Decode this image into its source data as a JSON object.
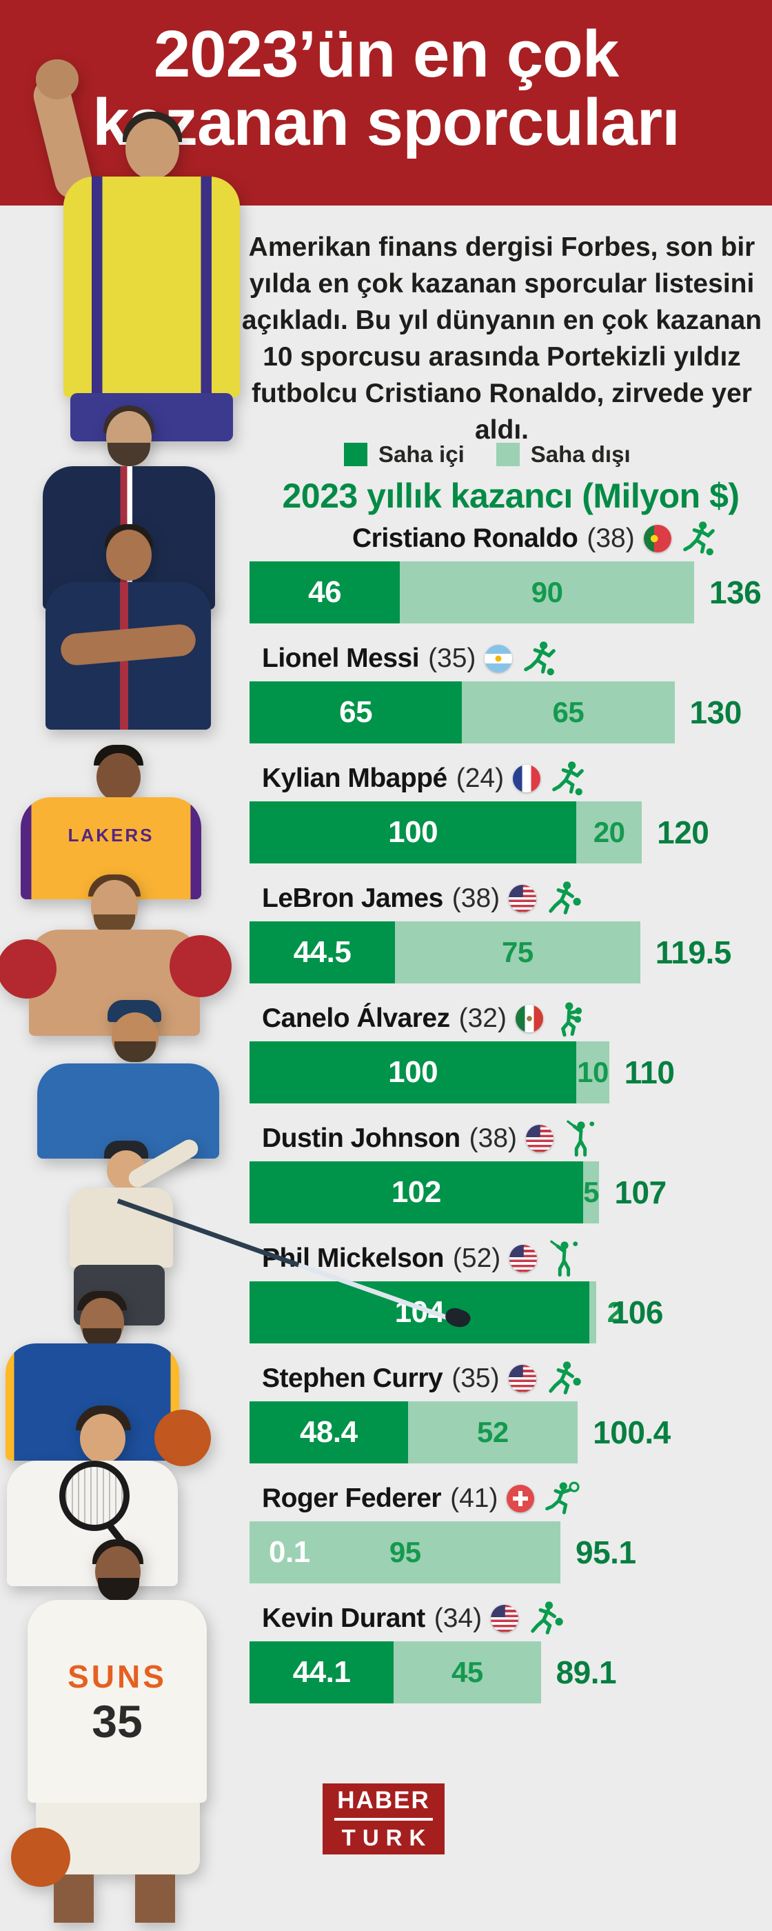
{
  "colors": {
    "header_red": "#a82023",
    "logo_red": "#a61f1f",
    "background": "#ececec",
    "on_field_green": "#00934a",
    "off_field_green": "#9cd1b3",
    "chart_title_green": "#038b46",
    "total_value_green": "#077f41",
    "off_value_green": "#14994e"
  },
  "header": {
    "title_line1": "2023’ün en çok",
    "title_line2": "kazanan sporcuları"
  },
  "intro": {
    "text": "Amerikan finans dergisi Forbes, son bir yılda en çok kazanan sporcular listesini açıkladı. Bu yıl dünyanın en çok kazanan 10 sporcusu arasında Portekizli yıldız futbolcu Cristiano Ronaldo, zirvede yer aldı."
  },
  "legend": {
    "on_label": "Saha içi",
    "off_label": "Saha dışı"
  },
  "chart_data": {
    "type": "bar",
    "orientation": "horizontal-stacked",
    "title": "2023 yıllık kazancı (Milyon $)",
    "unit": "Milyon $",
    "series_names": [
      "Saha içi",
      "Saha dışı"
    ],
    "max_total": 136,
    "athletes": [
      {
        "name": "Cristiano Ronaldo",
        "age": "(38)",
        "country": "portugal",
        "sport": "football",
        "on_field": 46,
        "off_field": 90,
        "total": 136,
        "on_label": "46",
        "off_label": "90",
        "total_label": "136"
      },
      {
        "name": "Lionel Messi",
        "age": "(35)",
        "country": "argentina",
        "sport": "football",
        "on_field": 65,
        "off_field": 65,
        "total": 130,
        "on_label": "65",
        "off_label": "65",
        "total_label": "130"
      },
      {
        "name": "Kylian Mbappé",
        "age": "(24)",
        "country": "france",
        "sport": "football",
        "on_field": 100,
        "off_field": 20,
        "total": 120,
        "on_label": "100",
        "off_label": "20",
        "total_label": "120"
      },
      {
        "name": "LeBron James",
        "age": "(38)",
        "country": "usa",
        "sport": "basketball",
        "on_field": 44.5,
        "off_field": 75,
        "total": 119.5,
        "on_label": "44.5",
        "off_label": "75",
        "total_label": "119.5"
      },
      {
        "name": "Canelo Álvarez",
        "age": "(32)",
        "country": "mexico",
        "sport": "boxing",
        "on_field": 100,
        "off_field": 10,
        "total": 110,
        "on_label": "100",
        "off_label": "10",
        "total_label": "110"
      },
      {
        "name": "Dustin Johnson",
        "age": "(38)",
        "country": "usa",
        "sport": "golf",
        "on_field": 102,
        "off_field": 5,
        "total": 107,
        "on_label": "102",
        "off_label": "5",
        "total_label": "107"
      },
      {
        "name": "Phil Mickelson",
        "age": "(52)",
        "country": "usa",
        "sport": "golf",
        "on_field": 104,
        "off_field": 2,
        "total": 106,
        "on_label": "104",
        "off_label": "2",
        "total_label": "106"
      },
      {
        "name": "Stephen Curry",
        "age": "(35)",
        "country": "usa",
        "sport": "basketball",
        "on_field": 48.4,
        "off_field": 52,
        "total": 100.4,
        "on_label": "48.4",
        "off_label": "52",
        "total_label": "100.4"
      },
      {
        "name": "Roger Federer",
        "age": "(41)",
        "country": "switzerland",
        "sport": "tennis",
        "on_field": 0.1,
        "off_field": 95,
        "total": 95.1,
        "on_label": "0.1",
        "off_label": "95",
        "total_label": "95.1"
      },
      {
        "name": "Kevin Durant",
        "age": "(34)",
        "country": "usa",
        "sport": "basketball",
        "on_field": 44.1,
        "off_field": 45,
        "total": 89.1,
        "on_label": "44.1",
        "off_label": "45",
        "total_label": "89.1"
      }
    ]
  },
  "photo_texts": {
    "lebron_jersey": "LAKERS",
    "durant_jersey": "SUNS",
    "durant_number": "35"
  },
  "logo": {
    "line1": "HABER",
    "line2": "TURK"
  }
}
